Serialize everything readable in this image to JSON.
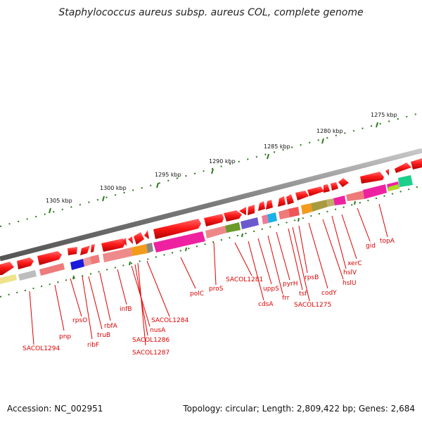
{
  "title": "Staphylococcus aureus subsp. aureus COL, complete genome",
  "footer": {
    "accession": "Accession: NC_002951",
    "summary": "Topology: circular; Length: 2,809,422 bp; Genes: 2,684"
  },
  "scale_labels": [
    "1305 kbp",
    "1300 kbp",
    "1295 kbp",
    "1290 kbp",
    "1285 kbp",
    "1280 kbp",
    "1275 kbp"
  ],
  "gene_labels": [
    "SACOL1294",
    "pnp",
    "rpsO",
    "ribF",
    "truB",
    "rbfA",
    "infB",
    "nusA",
    "SACOL1286",
    "SACOL1287",
    "SACOL1284",
    "polC",
    "proS",
    "SACOL1281",
    "cdsA",
    "uppS",
    "frr",
    "pyrH",
    "tsf",
    "SACOL1275",
    "rpsB",
    "codY",
    "hslU",
    "hslV",
    "xerC",
    "gid",
    "topA"
  ],
  "colors": {
    "gene_arrow": "#ee0000",
    "label": "#dd0000",
    "backbone": "#888888",
    "tick": "#2a7a1a"
  }
}
